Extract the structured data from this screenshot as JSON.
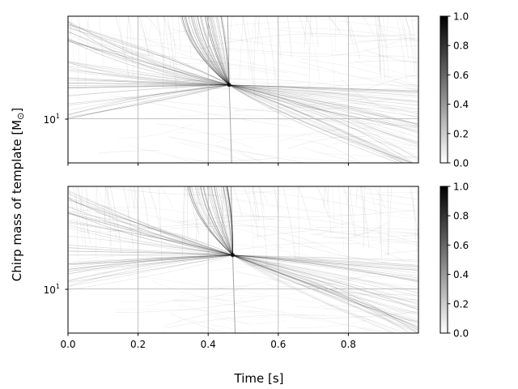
{
  "figure": {
    "xlabel": "Time [s]",
    "ylabel_main": "Chirp mass of template [M",
    "ylabel_sym": "⊙",
    "ylabel_end": "]"
  },
  "chart_data": [
    {
      "type": "heatmap",
      "panel": "top",
      "xlim": [
        0,
        1.0
      ],
      "ylim": [
        5,
        50
      ],
      "yscale": "log",
      "x_ticks": [
        0.0,
        0.2,
        0.4,
        0.6,
        0.8
      ],
      "x_tick_labels": [],
      "y_ticks": [
        10
      ],
      "y_tick_label": {
        "base": "10",
        "exp": "1"
      },
      "grid": true,
      "colormap": "Greys",
      "colorbar": {
        "range": [
          0,
          1
        ],
        "ticks": [
          "0.0",
          "0.2",
          "0.4",
          "0.6",
          "0.8",
          "1.0"
        ]
      },
      "features": {
        "merger_time": 0.46,
        "peak_chirp_mass": 17
      }
    },
    {
      "type": "heatmap",
      "panel": "bottom",
      "xlim": [
        0,
        1.0
      ],
      "ylim": [
        5,
        50
      ],
      "yscale": "log",
      "x_ticks": [
        0.0,
        0.2,
        0.4,
        0.6,
        0.8
      ],
      "x_tick_labels": [
        "0.0",
        "0.2",
        "0.4",
        "0.6",
        "0.8"
      ],
      "y_ticks": [
        10
      ],
      "y_tick_label": {
        "base": "10",
        "exp": "1"
      },
      "grid": true,
      "colormap": "Greys",
      "colorbar": {
        "range": [
          0,
          1
        ],
        "ticks": [
          "0.0",
          "0.2",
          "0.4",
          "0.6",
          "0.8",
          "1.0"
        ]
      },
      "features": {
        "merger_time": 0.47,
        "peak_chirp_mass": 17
      }
    }
  ]
}
